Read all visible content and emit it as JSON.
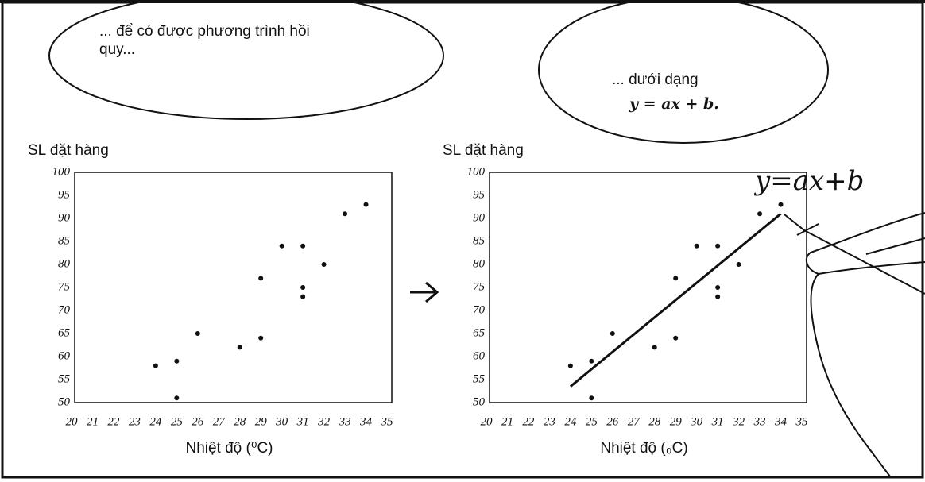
{
  "speech_bubbles": [
    "... để có được phương trình hồi quy...",
    "... dưới dạng",
    "y = ax + b."
  ],
  "chart_data": [
    {
      "type": "scatter",
      "ylabel": "SL đặt hàng",
      "xlabel": "Nhiệt độ (⁰C)",
      "x": [
        24,
        25,
        25,
        26,
        28,
        29,
        29,
        30,
        31,
        31,
        31,
        32,
        33,
        34
      ],
      "values": [
        58,
        59,
        51,
        65,
        62,
        77,
        64,
        84,
        84,
        75,
        73,
        80,
        91,
        93
      ],
      "color": "#111111",
      "xlim": [
        20,
        35
      ],
      "xticks": [
        20,
        21,
        22,
        23,
        24,
        25,
        26,
        27,
        28,
        29,
        30,
        31,
        32,
        33,
        34,
        35
      ],
      "ylim": [
        50,
        100
      ],
      "yticks": [
        50,
        55,
        60,
        65,
        70,
        75,
        80,
        85,
        90,
        95,
        100
      ]
    },
    {
      "type": "scatter",
      "ylabel": "SL đặt hàng",
      "xlabel": "Nhiệt độ (₀C)",
      "x": [
        24,
        25,
        25,
        26,
        28,
        29,
        29,
        30,
        31,
        31,
        31,
        32,
        33,
        34
      ],
      "values": [
        58,
        59,
        51,
        65,
        62,
        77,
        64,
        84,
        84,
        75,
        73,
        80,
        91,
        93
      ],
      "color": "#111111",
      "regression_line": {
        "x": [
          24,
          34
        ],
        "values": [
          53.5,
          91
        ]
      },
      "annotation": "y=ax+b",
      "xlim": [
        20,
        35
      ],
      "xticks": [
        20,
        21,
        22,
        23,
        24,
        25,
        26,
        27,
        28,
        29,
        30,
        31,
        32,
        33,
        34,
        35
      ],
      "ylim": [
        50,
        100
      ],
      "yticks": [
        50,
        55,
        60,
        65,
        70,
        75,
        80,
        85,
        90,
        95,
        100
      ]
    }
  ]
}
